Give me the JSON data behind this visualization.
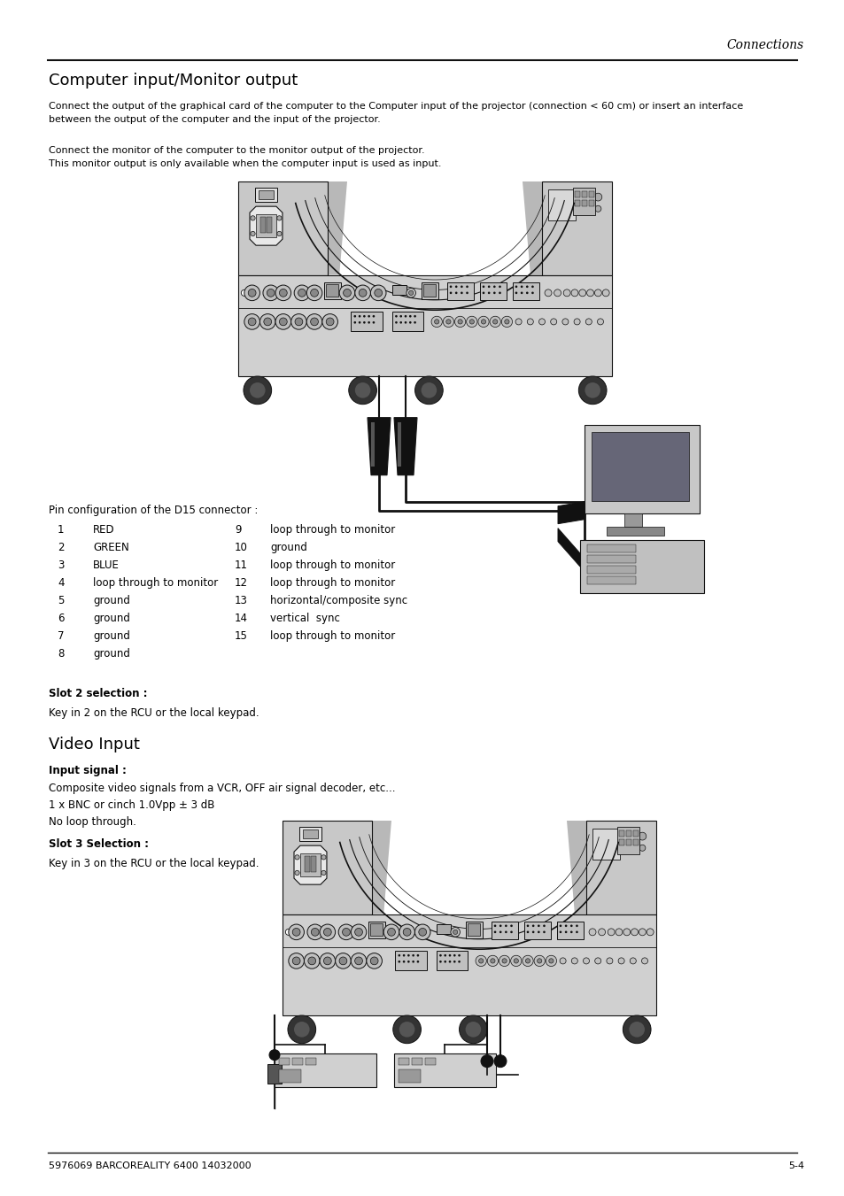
{
  "page_header_right": "Connections",
  "footer_left": "5976069 BARCOREALITY 6400 14032000",
  "footer_right": "5-4",
  "section1_title": "Computer input/Monitor output",
  "para1_text": "Connect the output of the graphical card of the computer to the Computer input of the projector (connection < 60 cm) or insert an interface\nbetween the output of the computer and the input of the projector.",
  "para2_text": "Connect the monitor of the computer to the monitor output of the projector.\nThis monitor output is only available when the computer input is used as input.",
  "pin_config_title": "Pin configuration of the D15 connector :",
  "pin_table": [
    {
      "num": "1",
      "label": "RED",
      "num2": "9",
      "label2": "loop through to monitor"
    },
    {
      "num": "2",
      "label": "GREEN",
      "num2": "10",
      "label2": "ground"
    },
    {
      "num": "3",
      "label": "BLUE",
      "num2": "11",
      "label2": "loop through to monitor"
    },
    {
      "num": "4",
      "label": "loop through to monitor",
      "num2": "12",
      "label2": "loop through to monitor"
    },
    {
      "num": "5",
      "label": "ground",
      "num2": "13",
      "label2": "horizontal/composite sync"
    },
    {
      "num": "6",
      "label": "ground",
      "num2": "14",
      "label2": "vertical  sync"
    },
    {
      "num": "7",
      "label": "ground",
      "num2": "15",
      "label2": "loop through to monitor"
    },
    {
      "num": "8",
      "label": "ground",
      "num2": "",
      "label2": ""
    }
  ],
  "slot2_bold": "Slot 2 selection :",
  "slot2_text": "Key in 2 on the RCU or the local keypad.",
  "section2_title": "Video Input",
  "input_signal_bold": "Input signal :",
  "input_signal_text": "Composite video signals from a VCR, OFF air signal decoder, etc...\n1 x BNC or cinch 1.0Vpp ± 3 dB\nNo loop through.",
  "slot3_bold": "Slot 3 Selection :",
  "slot3_text": "Key in 3 on the RCU or the local keypad.",
  "bg_color": "#ffffff",
  "text_color": "#000000",
  "gray_light": "#cccccc",
  "gray_mid": "#999999",
  "gray_dark": "#555555",
  "black": "#111111"
}
